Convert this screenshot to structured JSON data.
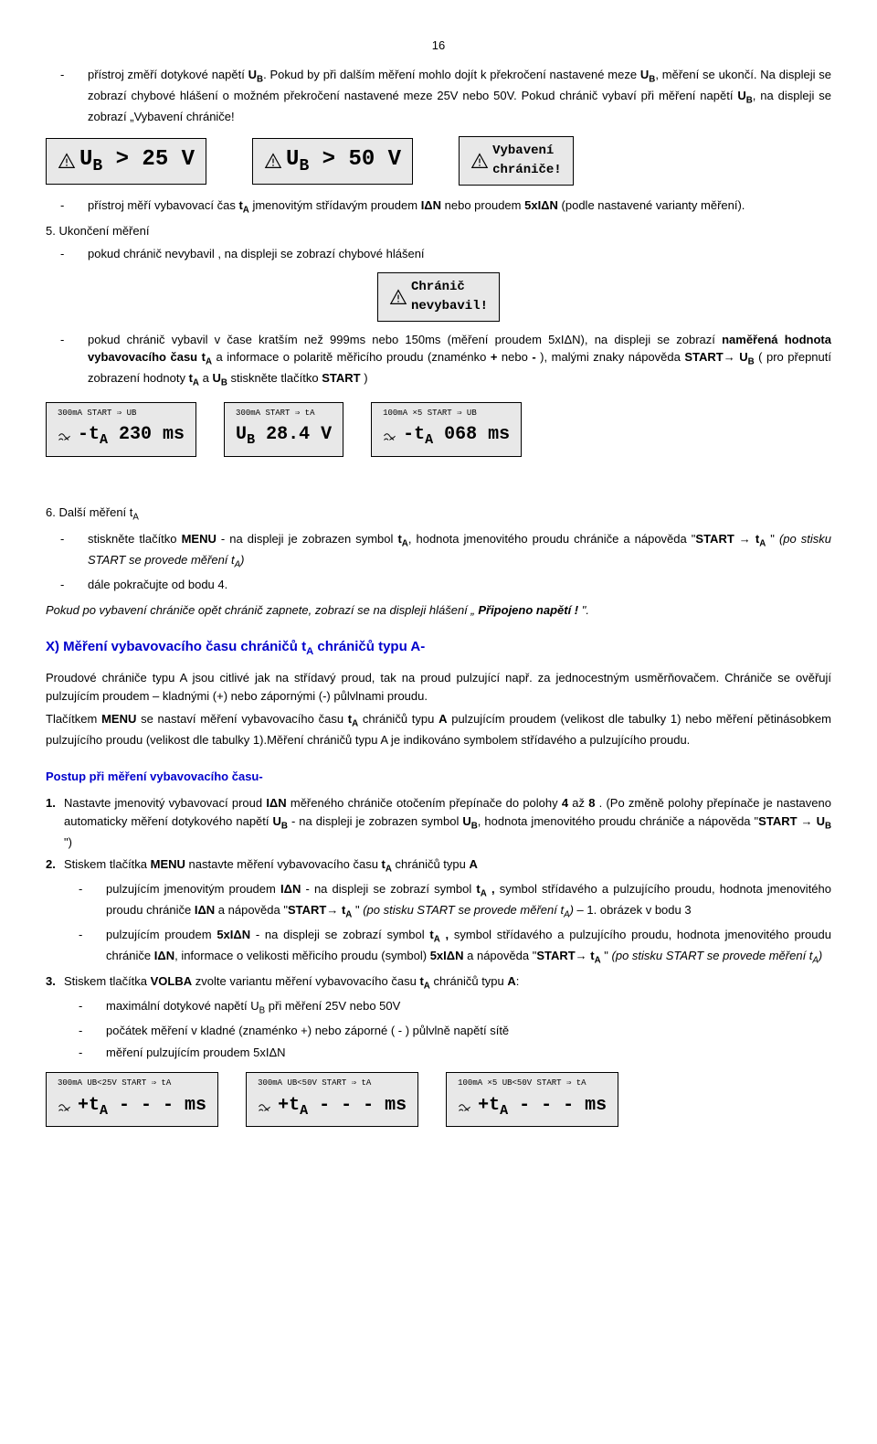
{
  "pageNumber": "16",
  "p1_item": "přístroj změří dotykové napětí <b>U<sub>B</sub></b>. Pokud by při dalším měření mohlo dojít k překročení nastavené meze <b>U<sub>B</sub></b>, měření se ukončí. Na displeji se zobrazí chybové hlášení o možném překročení nastavené meze 25V nebo 50V. Pokud chránič vybaví při měření napětí <b>U<sub>B</sub></b>, na displeji se zobrazí „Vybavení chrániče!",
  "disp1a": "U<sub>B</sub> > 25 V",
  "disp1b": "U<sub>B</sub> > 50 V",
  "disp1c": "Vybavení<br>chrániče!",
  "p2_item": "přístroj měří vybavovací čas <b>t<sub>A</sub></b> jmenovitým střídavým proudem <b>IΔN</b> nebo proudem <b>5xIΔN</b> (podle nastavené varianty měření).",
  "p3_num": "5.",
  "p3_title": "Ukončení měření",
  "p3_item": "pokud chránič nevybavil , na displeji se zobrazí chybové hlášení",
  "disp2": "Chránič<br>nevybavil!",
  "p4_item": "pokud chránič vybavil v čase kratším než 999ms nebo 150ms (měření proudem 5xIΔN), na displeji se zobrazí <b>naměřená hodnota vybavovacího času t<sub>A</sub></b> a informace o polaritě měřicího proudu (znaménko <b>+</b> nebo <b>-</b> ), malými znaky nápověda <b>START→ U<sub>B</sub></b> ( pro přepnutí zobrazení hodnoty <b>t<sub>A</sub></b> a <b>U<sub>B</sub></b> stiskněte tlačítko <b>START</b> )",
  "disp3a_top": "300mA  START ⇒ UB",
  "disp3a": "-t<sub>A</sub> 230 ms",
  "disp3b_top": "300mA  START ⇒ tA",
  "disp3b": "U<sub>B</sub> 28.4 V",
  "disp3c_top": "100mA ×5  START ⇒ UB",
  "disp3c": "-t<sub>A</sub> 068 ms",
  "s6_num": "6.",
  "s6_title": "Další měření t<sub>A</sub>",
  "s6_item1": "stiskněte tlačítko <b>MENU</b> - na displeji je zobrazen symbol <b>t<sub>A</sub></b>, hodnota jmenovitého proudu chrániče a nápověda \"<b>START → t<sub>A</sub></b> \" <i>(po stisku START se provede měření t<sub>A</sub>)</i>",
  "s6_item2": "dále pokračujte od bodu 4.",
  "p5": "<i>Pokud po vybavení chrániče opět chránič zapnete, zobrazí se na displeji hlášení „ <b>Připojeno napětí ! </b>\".</i>",
  "heading_x": "X) Měření vybavovacího času chráničů t<sub>A</sub> chráničů typu A-",
  "p6": "Proudové chrániče typu A jsou citlivé jak na střídavý proud, tak na proud pulzující např. za jednocestným usměrňovačem. Chrániče se ověřují pulzujícím proudem – kladnými (+) nebo zápornými (-) půlvlnami proudu.",
  "p7": "Tlačítkem <b>MENU</b> se nastaví měření vybavovacího času <b>t<sub>A</sub></b> chráničů typu <b>A</b> pulzujícím proudem (velikost dle tabulky 1) nebo měření pětinásobkem pulzujícího proudu (velikost dle tabulky 1).Měření chráničů typu A je indikováno symbolem střídavého a pulzujícího proudu.",
  "heading_postup": "Postup při měření vybavovacího času-",
  "postup1_num": "1.",
  "postup1": "Nastavte jmenovitý vybavovací proud <b>IΔN</b> měřeného chrániče otočením přepínače do polohy <b>4</b> až <b>8</b> . (Po změně polohy přepínače je nastaveno automaticky měření dotykového napětí <b>U<sub>B</sub></b> - na displeji je zobrazen symbol <b>U<sub>B</sub></b>, hodnota jmenovitého proudu chrániče a nápověda \"<b>START → U<sub>B</sub></b> \")",
  "postup2_num": "2.",
  "postup2": "Stiskem tlačítka <b>MENU</b> nastavte měření vybavovacího času <b>t<sub>A</sub></b> chráničů typu <b>A</b>",
  "postup2_i1": "pulzujícím jmenovitým proudem <b>IΔN</b> - na displeji se zobrazí symbol <b>t<sub>A</sub> ,</b> symbol střídavého a pulzujícího proudu, hodnota jmenovitého proudu chrániče <b>IΔN</b> a nápověda \"<b>START→ t<sub>A</sub></b> \" <i>(po stisku START se provede měření t<sub>A</sub>)</i> – 1. obrázek v bodu 3",
  "postup2_i2": "pulzujícím proudem <b>5xIΔN</b> - na displeji se zobrazí symbol <b>t<sub>A</sub> ,</b> symbol střídavého a pulzujícího proudu, hodnota jmenovitého proudu chrániče <b>IΔN</b>, informace o velikosti měřicího proudu (symbol) <b>5xIΔN</b> a nápověda \"<b>START→ t<sub>A</sub></b> \" <i>(po stisku START se provede měření t<sub>A</sub>)</i>",
  "postup3_num": "3.",
  "postup3": "Stiskem tlačítka <b>VOLBA</b> zvolte variantu měření vybavovacího času <b>t<sub>A</sub></b> chráničů typu <b>A</b>:",
  "postup3_i1": "maximální dotykové napětí U<sub>B</sub> při měření 25V nebo 50V",
  "postup3_i2": "počátek měření v kladné (znaménko +) nebo záporné ( - ) půlvlně napětí sítě",
  "postup3_i3": "měření pulzujícím proudem 5xIΔN",
  "disp4a_top": "300mA  UB<25V  START ⇒ tA",
  "disp4a": "+t<sub>A</sub> - - - ms",
  "disp4b_top": "300mA  UB<50V  START ⇒ tA",
  "disp4b": "+t<sub>A</sub> - - - ms",
  "disp4c_top": "100mA ×5  UB<50V  START ⇒ tA",
  "disp4c": "+t<sub>A</sub> - - - ms",
  "colors": {
    "blue": "#0000cc",
    "displayBg": "#e8e8e8",
    "black": "#000000"
  }
}
